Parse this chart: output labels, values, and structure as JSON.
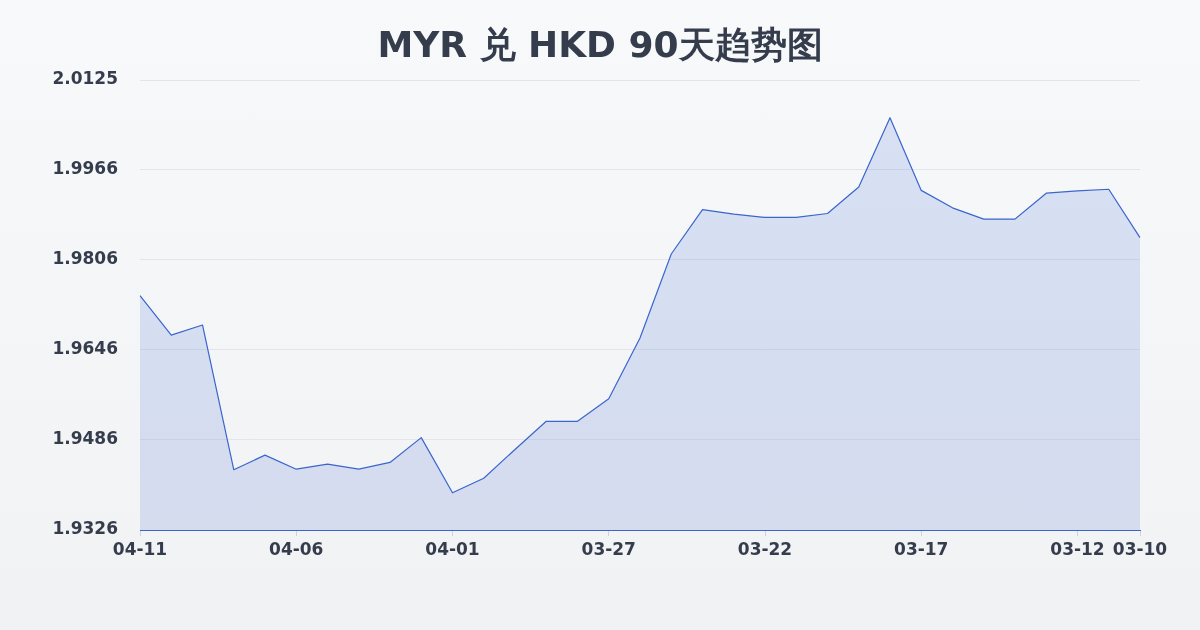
{
  "chart_data": {
    "type": "area",
    "title": "MYR 兑 HKD 90天趋势图",
    "categories": [
      "04-11",
      null,
      null,
      null,
      null,
      "04-06",
      null,
      null,
      null,
      null,
      "04-01",
      null,
      null,
      null,
      null,
      "03-27",
      null,
      null,
      null,
      null,
      "03-22",
      null,
      null,
      null,
      null,
      "03-17",
      null,
      null,
      null,
      null,
      "03-12",
      null,
      "03-10"
    ],
    "series": [
      {
        "color": "#3a66cc",
        "values": [
          1.9742,
          1.9672,
          1.969,
          1.9433,
          1.9459,
          1.9434,
          1.9443,
          1.9434,
          1.9446,
          1.949,
          1.9392,
          1.9418,
          1.9469,
          1.9519,
          1.9519,
          1.9559,
          1.9667,
          1.9816,
          1.9895,
          1.9887,
          1.9881,
          1.9881,
          1.9888,
          1.9935,
          2.0058,
          1.9929,
          1.9898,
          1.9878,
          1.9878,
          1.9924,
          1.9928,
          1.9931,
          1.9845
        ]
      }
    ],
    "ylim": [
      1.9326,
      2.0125
    ],
    "yticks": [
      1.9326,
      1.9486,
      1.9646,
      1.9806,
      1.9966,
      2.0125
    ],
    "grid": "y",
    "marker": "none",
    "legend": false
  }
}
